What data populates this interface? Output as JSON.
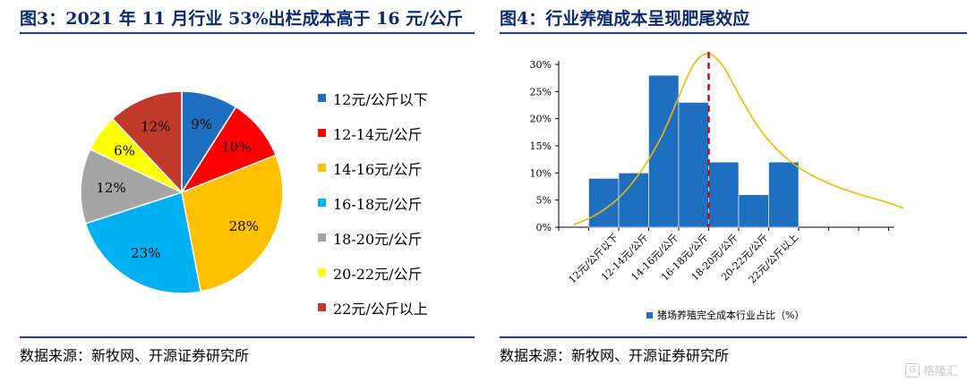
{
  "left_panel": {
    "title": "图3：2021 年 11 月行业 53%出栏成本高于 16 元/公斤",
    "source": "数据来源：新牧网、开源证券研究所"
  },
  "right_panel": {
    "title": "图4：行业养殖成本呈现肥尾效应",
    "source": "数据来源：新牧网、开源证券研究所"
  },
  "watermark": {
    "badge": "G",
    "text": "格隆汇"
  },
  "colors": {
    "title": "#0b2a6f",
    "rule": "#1f3f8f",
    "bar": "#1f6fc1",
    "curve": "#f2b800",
    "dashed": "#b0151b"
  },
  "chart_data": [
    {
      "type": "pie",
      "start_angle_deg": 0,
      "direction": "clockwise",
      "categories": [
        "12元/公斤以下",
        "12-14元/公斤",
        "14-16元/公斤",
        "16-18元/公斤",
        "18-20元/公斤",
        "20-22元/公斤",
        "22元/公斤以上"
      ],
      "values": [
        9,
        10,
        28,
        23,
        12,
        6,
        12
      ],
      "labels": [
        "9%",
        "10%",
        "28%",
        "23%",
        "12%",
        "6%",
        "12%"
      ],
      "colors": [
        "#1f6fc1",
        "#ff0000",
        "#ffc000",
        "#00b0f0",
        "#a5a5a5",
        "#ffff00",
        "#c0392b"
      ],
      "legend_position": "right"
    },
    {
      "type": "bar",
      "categories": [
        "12元/公斤以下",
        "12-14元/公斤",
        "14-16元/公斤",
        "16-18元/公斤",
        "18-20元/公斤",
        "20-22元/公斤",
        "22元/公斤以上"
      ],
      "series": [
        {
          "name": "猪场养殖完全成本行业占比（%）",
          "values": [
            9,
            10,
            28,
            23,
            12,
            6,
            12
          ],
          "color": "#1f6fc1"
        }
      ],
      "ylim": [
        0,
        30
      ],
      "yticks": [
        "0%",
        "5%",
        "10%",
        "15%",
        "20%",
        "25%",
        "30%"
      ],
      "bar_gap": 0,
      "extra_empty_categories_right": 3,
      "overlay_curve": {
        "color": "#f2b800",
        "points_x": [
          -1,
          -0.5,
          0,
          0.5,
          1,
          1.5,
          2,
          2.5,
          3,
          3.5,
          4,
          4.5,
          5,
          5.5,
          6,
          6.5,
          7,
          7.5,
          8,
          8.5,
          9,
          9.5,
          10
        ],
        "points_y": [
          0.5,
          1.6,
          3.2,
          5.4,
          8.5,
          12.5,
          17.5,
          24.0,
          30.0,
          32.0,
          29.5,
          24.5,
          19.8,
          16.0,
          13.2,
          11.0,
          9.4,
          8.1,
          7.0,
          6.1,
          5.3,
          4.5,
          3.5
        ]
      },
      "reference_line": {
        "x": 3.5,
        "style": "dashed",
        "color": "#b0151b"
      },
      "legend_position": "bottom"
    }
  ]
}
